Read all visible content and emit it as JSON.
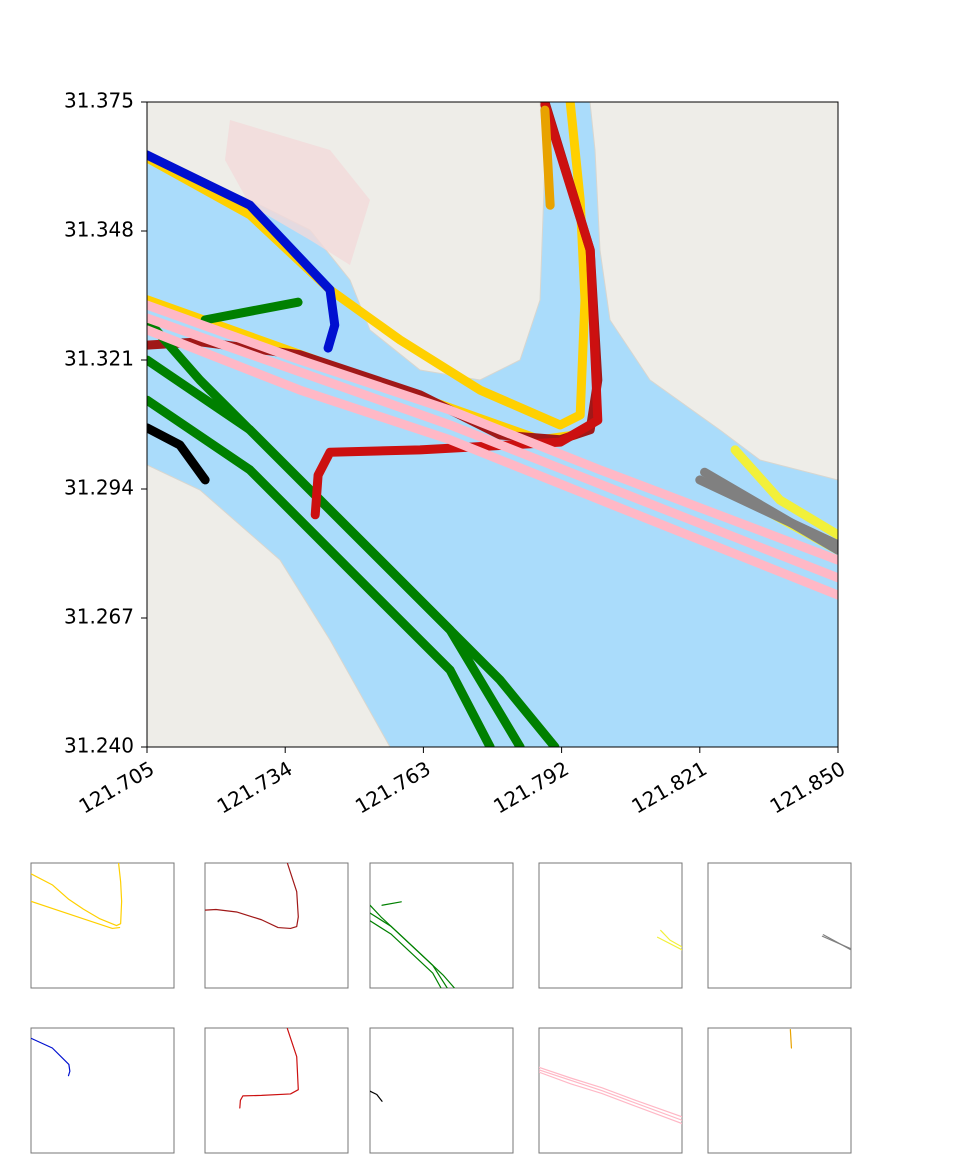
{
  "chart_data": {
    "type": "trajectory_map",
    "xlim": [
      121.705,
      121.85
    ],
    "ylim": [
      31.24,
      31.375
    ],
    "xticks": [
      {
        "value": 121.705,
        "label": "121.705"
      },
      {
        "value": 121.734,
        "label": "121.734"
      },
      {
        "value": 121.763,
        "label": "121.763"
      },
      {
        "value": 121.792,
        "label": "121.792"
      },
      {
        "value": 121.821,
        "label": "121.821"
      },
      {
        "value": 121.85,
        "label": "121.850"
      }
    ],
    "yticks": [
      {
        "value": 31.24,
        "label": "31.240"
      },
      {
        "value": 31.267,
        "label": "31.267"
      },
      {
        "value": 31.294,
        "label": "31.294"
      },
      {
        "value": 31.321,
        "label": "31.321"
      },
      {
        "value": 31.348,
        "label": "31.348"
      },
      {
        "value": 31.375,
        "label": "31.375"
      }
    ],
    "series": [
      {
        "color": "#ffd000",
        "tracks": [
          {
            "x": [
              121.705,
              121.7266,
              121.7434,
              121.7581,
              121.7749,
              121.7917,
              121.7959,
              121.7969,
              121.7959,
              121.7938
            ],
            "y": [
              31.3633,
              31.3514,
              31.3357,
              31.3252,
              31.3147,
              31.3074,
              31.3095,
              31.3336,
              31.3545,
              31.375
            ]
          },
          {
            "x": [
              121.705,
              121.7581,
              121.7875,
              121.7948
            ],
            "y": [
              31.3336,
              31.3147,
              31.3043,
              31.3053
            ]
          }
        ]
      },
      {
        "color": "#a01818",
        "tracks": [
          {
            "x": [
              121.705,
              121.7161,
              121.7371,
              121.7623,
              121.7791,
              121.7917,
              121.798,
              121.7996,
              121.798,
              121.7885
            ],
            "y": [
              31.3241,
              31.3248,
              31.3221,
              31.3137,
              31.3053,
              31.3043,
              31.3064,
              31.3168,
              31.344,
              31.375
            ]
          }
        ]
      },
      {
        "color": "#008000",
        "tracks": [
          {
            "x": [
              121.705,
              121.7161,
              121.7371,
              121.7581,
              121.7791,
              121.7906
            ],
            "y": [
              31.3294,
              31.3168,
              31.2959,
              31.275,
              31.254,
              31.24
            ]
          },
          {
            "x": [
              121.705,
              121.7266,
              121.7476,
              121.7686,
              121.7833
            ],
            "y": [
              31.321,
              31.3064,
              31.2854,
              31.2645,
              31.24
            ]
          },
          {
            "x": [
              121.705,
              121.7266,
              121.7476,
              121.7686,
              121.777
            ],
            "y": [
              31.3126,
              31.298,
              31.277,
              31.2561,
              31.24
            ]
          },
          {
            "x": [
              121.7172,
              121.7367
            ],
            "y": [
              31.3294,
              31.3331
            ]
          }
        ]
      },
      {
        "color": "#f2f03a",
        "tracks": [
          {
            "x": [
              121.8284,
              121.8378,
              121.85
            ],
            "y": [
              31.3022,
              31.2917,
              31.2844
            ]
          },
          {
            "x": [
              121.8252,
              121.85
            ],
            "y": [
              31.2948,
              31.2812
            ]
          }
        ]
      },
      {
        "color": "#808080",
        "tracks": [
          {
            "x": [
              121.821,
              121.85
            ],
            "y": [
              31.2959,
              31.2823
            ]
          },
          {
            "x": [
              121.822,
              121.85
            ],
            "y": [
              31.2975,
              31.2812
            ]
          }
        ]
      },
      {
        "color": "#0010d0",
        "tracks": [
          {
            "x": [
              121.705,
              121.7266,
              121.7434,
              121.7444,
              121.743
            ],
            "y": [
              31.3639,
              31.3534,
              31.3357,
              31.3283,
              31.3235
            ]
          }
        ]
      },
      {
        "color": "#cc1010",
        "tracks": [
          {
            "x": [
              121.7885,
              121.798,
              121.7996,
              121.7917,
              121.7623,
              121.7434,
              121.7409,
              121.7403
            ],
            "y": [
              31.3744,
              31.344,
              31.3084,
              31.3038,
              31.3022,
              31.3017,
              31.2969,
              31.2886
            ]
          }
        ]
      },
      {
        "color": "#000000",
        "tracks": [
          {
            "x": [
              121.705,
              121.7119,
              121.7172
            ],
            "y": [
              31.3068,
              31.3032,
              31.2959
            ]
          }
        ]
      },
      {
        "color": "#ffb8c6",
        "tracks": [
          {
            "x": [
              121.705,
              121.7371,
              121.7686,
              121.8001,
              121.85
            ],
            "y": [
              31.3325,
              31.321,
              31.3105,
              31.298,
              31.2791
            ]
          },
          {
            "x": [
              121.705,
              121.7686,
              121.85
            ],
            "y": [
              31.3298,
              31.3074,
              31.2754
            ]
          },
          {
            "x": [
              121.705,
              121.7371,
              121.7686,
              121.8001,
              121.85
            ],
            "y": [
              31.3273,
              31.3147,
              31.3043,
              31.2917,
              31.2718
            ]
          }
        ]
      },
      {
        "color": "#e8a200",
        "tracks": [
          {
            "x": [
              121.7885,
              121.7896
            ],
            "y": [
              31.3733,
              31.3534
            ]
          }
        ]
      }
    ]
  }
}
